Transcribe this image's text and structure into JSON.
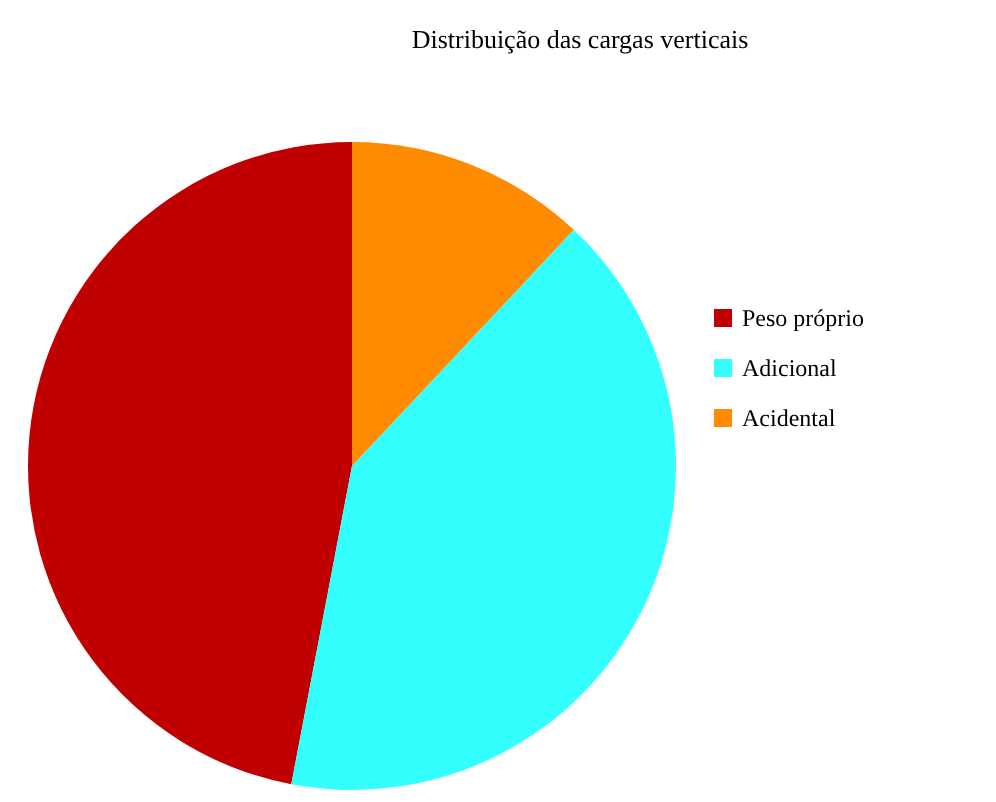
{
  "chart_data": {
    "type": "pie",
    "title": "Distribuição das cargas verticais",
    "categories": [
      "Peso próprio",
      "Adicional",
      "Acidental"
    ],
    "values": [
      47,
      41,
      12
    ],
    "colors": [
      "#c00000",
      "#33ffff",
      "#ff8c00"
    ],
    "legend": "right"
  }
}
